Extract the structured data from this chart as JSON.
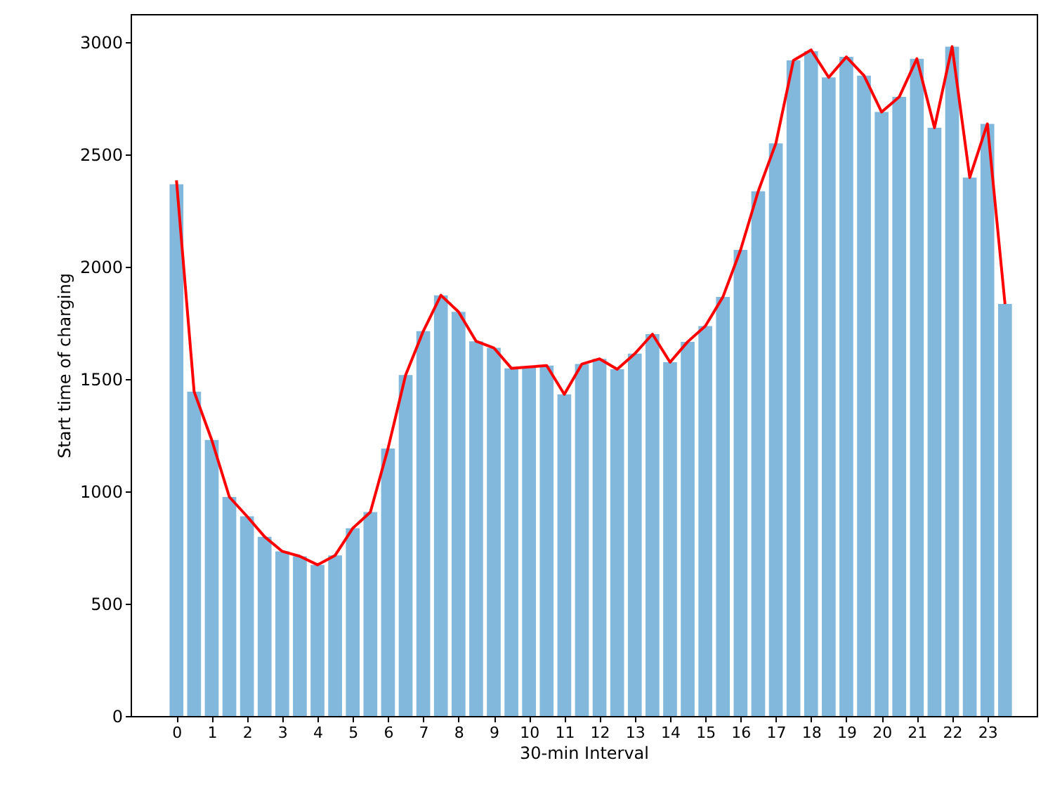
{
  "chart_data": {
    "type": "bar",
    "xlabel": "30-min Interval",
    "ylabel": "Start time of charging",
    "x": [
      0,
      0.5,
      1,
      1.5,
      2,
      2.5,
      3,
      3.5,
      4,
      4.5,
      5,
      5.5,
      6,
      6.5,
      7,
      7.5,
      8,
      8.5,
      9,
      9.5,
      10,
      10.5,
      11,
      11.5,
      12,
      12.5,
      13,
      13.5,
      14,
      14.5,
      15,
      15.5,
      16,
      16.5,
      17,
      17.5,
      18,
      18.5,
      19,
      19.5,
      20,
      20.5,
      21,
      21.5,
      22,
      22.5,
      23,
      23.5
    ],
    "series": [
      {
        "type": "bar",
        "color": "#82b8db",
        "values": [
          2367,
          1444,
          1229,
          975,
          889,
          798,
          733,
          711,
          673,
          715,
          836,
          908,
          1191,
          1518,
          1713,
          1873,
          1799,
          1668,
          1639,
          1548,
          1554,
          1560,
          1432,
          1567,
          1590,
          1544,
          1613,
          1700,
          1575,
          1666,
          1736,
          1866,
          2075,
          2336,
          2549,
          2919,
          2959,
          2843,
          2934,
          2851,
          2689,
          2756,
          2926,
          2619,
          2980,
          2397,
          2636,
          1834
        ]
      },
      {
        "type": "line",
        "color": "#ff0000",
        "values": [
          2385,
          1444,
          1229,
          975,
          889,
          798,
          733,
          711,
          673,
          715,
          836,
          908,
          1191,
          1518,
          1713,
          1873,
          1799,
          1668,
          1639,
          1548,
          1554,
          1560,
          1432,
          1567,
          1590,
          1544,
          1613,
          1700,
          1575,
          1666,
          1736,
          1866,
          2075,
          2336,
          2549,
          2919,
          2965,
          2843,
          2934,
          2851,
          2689,
          2756,
          2926,
          2619,
          2980,
          2397,
          2636,
          1834
        ]
      }
    ],
    "xlim": [
      -1.3,
      24.4
    ],
    "xticks": [
      0,
      1,
      2,
      3,
      4,
      5,
      6,
      7,
      8,
      9,
      10,
      11,
      12,
      13,
      14,
      15,
      16,
      17,
      18,
      19,
      20,
      21,
      22,
      23
    ],
    "ylim": [
      0,
      3125
    ],
    "yticks": [
      0,
      500,
      1000,
      1500,
      2000,
      2500,
      3000
    ]
  }
}
